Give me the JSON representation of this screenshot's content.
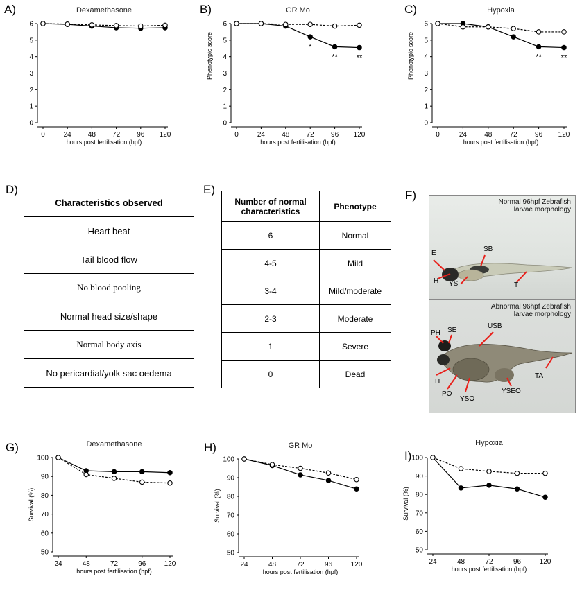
{
  "panels": {
    "A": "A)",
    "B": "B)",
    "C": "C)",
    "D": "D)",
    "E": "E)",
    "F": "F)",
    "G": "G)",
    "H": "H)",
    "I": "I)"
  },
  "tableD": {
    "header": "Characteristics observed",
    "rows": [
      "Heart beat",
      "Tail blood flow",
      "No blood pooling",
      "Normal head size/shape",
      "Normal body axis",
      "No pericardial/yolk sac oedema"
    ]
  },
  "tableE": {
    "col1": "Number of normal characteristics",
    "col2": "Phenotype",
    "rows": [
      {
        "n": "6",
        "p": "Normal"
      },
      {
        "n": "4-5",
        "p": "Mild"
      },
      {
        "n": "3-4",
        "p": "Mild/moderate"
      },
      {
        "n": "2-3",
        "p": "Moderate"
      },
      {
        "n": "1",
        "p": "Severe"
      },
      {
        "n": "0",
        "p": "Dead"
      }
    ]
  },
  "photos": {
    "top_caption": "Normal 96hpf Zebrafish larvae morphology",
    "bottom_caption": "Abnormal 96hpf Zebrafish larvae morphology",
    "top_labels": [
      "E",
      "SB",
      "H",
      "YS",
      "T"
    ],
    "bottom_labels": [
      "PH",
      "SE",
      "USB",
      "H",
      "PO",
      "YSO",
      "YSEO",
      "TA"
    ],
    "arrow_color": "#e8201a"
  },
  "chart_data": [
    {
      "id": "A",
      "type": "line",
      "title": "Dexamethasone",
      "xlabel": "hours post fertilisation (hpf)",
      "ylabel": "",
      "x": [
        0,
        24,
        48,
        72,
        96,
        120
      ],
      "ylim": [
        0,
        6
      ],
      "yticks": [
        "0",
        "1",
        "2",
        "3",
        "4",
        "5",
        "6"
      ],
      "series": [
        {
          "marker": "filled",
          "line": "solid",
          "values": [
            6,
            5.95,
            5.85,
            5.75,
            5.72,
            5.75
          ]
        },
        {
          "marker": "open",
          "line": "dashed",
          "values": [
            6,
            5.97,
            5.92,
            5.88,
            5.85,
            5.9
          ]
        }
      ],
      "annotations": []
    },
    {
      "id": "B",
      "type": "line",
      "title": "GR Mo",
      "xlabel": "hours post fertilisation (hpf)",
      "ylabel": "Phenotypic score",
      "x": [
        0,
        24,
        48,
        72,
        96,
        120
      ],
      "ylim": [
        0,
        6
      ],
      "yticks": [
        "0",
        "1",
        "2",
        "3",
        "4",
        "5",
        "6"
      ],
      "series": [
        {
          "marker": "filled",
          "line": "solid",
          "values": [
            6,
            6,
            5.85,
            5.2,
            4.6,
            4.55
          ]
        },
        {
          "marker": "open",
          "line": "dashed",
          "values": [
            6,
            6,
            5.95,
            5.95,
            5.85,
            5.9
          ]
        }
      ],
      "annotations": [
        {
          "x": 72,
          "text": "*"
        },
        {
          "x": 96,
          "text": "**"
        },
        {
          "x": 120,
          "text": "**"
        }
      ]
    },
    {
      "id": "C",
      "type": "line",
      "title": "Hypoxia",
      "xlabel": "hours post fertilisation (hpf)",
      "ylabel": "Phenotypic score",
      "x": [
        0,
        24,
        48,
        72,
        96,
        120
      ],
      "ylim": [
        0,
        6
      ],
      "yticks": [
        "0",
        "1",
        "2",
        "3",
        "4",
        "5",
        "6"
      ],
      "series": [
        {
          "marker": "filled",
          "line": "solid",
          "values": [
            6,
            6,
            5.8,
            5.2,
            4.6,
            4.55
          ]
        },
        {
          "marker": "open",
          "line": "dashed",
          "values": [
            6,
            5.8,
            5.8,
            5.7,
            5.5,
            5.5
          ]
        }
      ],
      "annotations": [
        {
          "x": 96,
          "text": "**"
        },
        {
          "x": 120,
          "text": "**"
        }
      ]
    },
    {
      "id": "G",
      "type": "line",
      "title": "Dexamethasone",
      "xlabel": "hours post fertilisation (hpf)",
      "ylabel": "Survival (%)",
      "x": [
        24,
        48,
        72,
        96,
        120
      ],
      "ylim": [
        50,
        100
      ],
      "yticks": [
        "50",
        "60",
        "70",
        "80",
        "90",
        "100"
      ],
      "series": [
        {
          "marker": "filled",
          "line": "solid",
          "values": [
            100,
            93,
            92.5,
            92.5,
            92
          ]
        },
        {
          "marker": "open",
          "line": "dashed",
          "values": [
            100,
            91,
            89,
            87,
            86.5
          ]
        }
      ],
      "annotations": []
    },
    {
      "id": "H",
      "type": "line",
      "title": "GR Mo",
      "xlabel": "hours post fertilisation (hpf)",
      "ylabel": "Survival (%)",
      "x": [
        24,
        48,
        72,
        96,
        120
      ],
      "ylim": [
        50,
        100
      ],
      "yticks": [
        "50",
        "60",
        "70",
        "80",
        "90",
        "100"
      ],
      "series": [
        {
          "marker": "filled",
          "line": "solid",
          "values": [
            100,
            96.5,
            91.5,
            88.5,
            84
          ]
        },
        {
          "marker": "open",
          "line": "dashed",
          "values": [
            100,
            97,
            95,
            92.5,
            89
          ]
        }
      ],
      "annotations": []
    },
    {
      "id": "I",
      "type": "line",
      "title": "Hypoxia",
      "xlabel": "hours post fertilisation (hpf)",
      "ylabel": "Survival (%)",
      "x": [
        24,
        48,
        72,
        96,
        120
      ],
      "ylim": [
        50,
        100
      ],
      "yticks": [
        "50",
        "60",
        "70",
        "80",
        "90",
        "100"
      ],
      "series": [
        {
          "marker": "filled",
          "line": "solid",
          "values": [
            100,
            83.5,
            85,
            83,
            78.5
          ]
        },
        {
          "marker": "open",
          "line": "dashed",
          "values": [
            100,
            94,
            92.5,
            91.5,
            91.5
          ]
        }
      ],
      "annotations": []
    }
  ]
}
